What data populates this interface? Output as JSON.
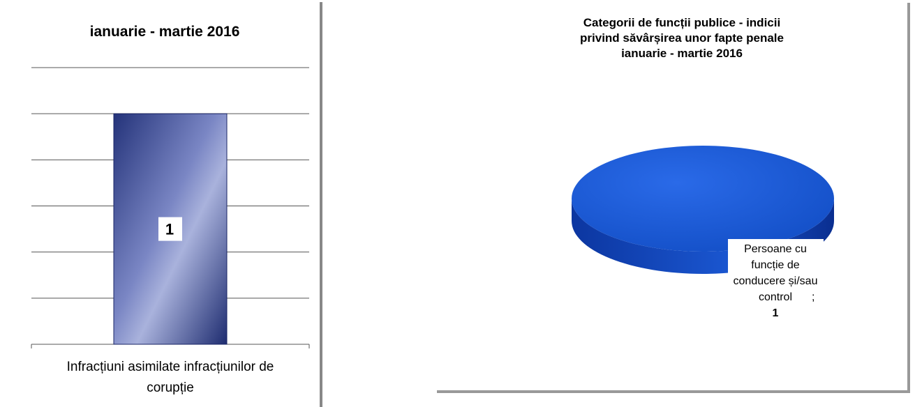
{
  "chart_data": [
    {
      "type": "bar",
      "title": "ianuarie - martie 2016",
      "categories": [
        "Infracțiuni asimilate infracțiunilor de corupție"
      ],
      "values": [
        1
      ],
      "color": "#3a4a9a",
      "ylim": [
        0,
        1.2
      ],
      "yticks": [
        0,
        0.2,
        0.4,
        0.6,
        0.8,
        1,
        1.2
      ],
      "tick_labels": false,
      "grid": true
    },
    {
      "type": "pie",
      "title": "Categorii de funcții publice - indicii privind săvârșirea unor fapte penale ianuarie - martie 2016",
      "categories": [
        "Persoane cu funcție de conducere și/sau control"
      ],
      "values": [
        1
      ],
      "label_separator": ";",
      "color": "#1f5fd6"
    }
  ]
}
